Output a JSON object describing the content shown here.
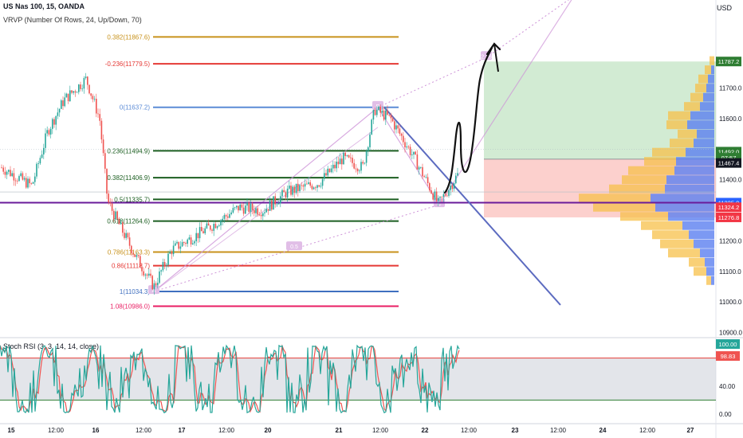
{
  "header": {
    "symbol_line": "US Nas 100, 15, OANDA",
    "indicator_line": "VRVP (Number Of Rows, 24, Up/Down, 70)",
    "currency": "USD"
  },
  "stoch": {
    "label": "Stoch RSI (3, 3, 14, 14, close)",
    "levels": [
      80,
      20
    ],
    "axis_ticks": [
      "40.00",
      "0.00"
    ],
    "value_badges": [
      {
        "text": "100.00",
        "value": 100,
        "color": "#26a69a"
      },
      {
        "text": "98.83",
        "value": 98.83,
        "color": "#ef5350"
      }
    ]
  },
  "chart_data": {
    "type": "candlestick",
    "price_axis": {
      "range": [
        10860,
        11850
      ],
      "ticks": [
        "11700.0",
        "11600.0",
        "11400.0",
        "11200.0",
        "11100.0",
        "11000.0",
        "10900.0"
      ]
    },
    "time_axis": {
      "labels": [
        "15",
        "12:00",
        "16",
        "12:00",
        "17",
        "12:00",
        "20",
        "21",
        "12:00",
        "22",
        "12:00",
        "23",
        "12:00",
        "24",
        "12:00",
        "27"
      ]
    },
    "price_badges": [
      {
        "text": "11787.2",
        "price": 11787.2,
        "color": "#2e7d32"
      },
      {
        "text": "11492.0",
        "price": 11492.0,
        "color": "#2e7d32"
      },
      {
        "text": "07:57",
        "price": 11472,
        "color": "#2e7d32"
      },
      {
        "text": "11467.4",
        "price": 11455,
        "color": "#131722"
      },
      {
        "text": "11325.0",
        "price": 11325.0,
        "color": "#2962ff"
      },
      {
        "text": "11324.2",
        "price": 11310,
        "color": "#f23645"
      },
      {
        "text": "11276.8",
        "price": 11276.8,
        "color": "#f23645"
      }
    ],
    "fib_levels": [
      {
        "label": "0.382(11867.6)",
        "price": 11867.6,
        "color": "#c8921b"
      },
      {
        "label": "-0.236(11779.5)",
        "price": 11779.5,
        "color": "#e53935"
      },
      {
        "label": "0(11637.2)",
        "price": 11637.2,
        "color": "#5b8bd6"
      },
      {
        "label": "0.236(11494.9)",
        "price": 11494.9,
        "color": "#1b5e20"
      },
      {
        "label": "0.382(11406.9)",
        "price": 11406.9,
        "color": "#1b5e20"
      },
      {
        "label": "0.5(11335.7)",
        "price": 11335.7,
        "color": "#1b5e20"
      },
      {
        "label": "0.618(11264.6)",
        "price": 11264.6,
        "color": "#1b5e20"
      },
      {
        "label": "0.786(11163.3)",
        "price": 11163.3,
        "color": "#c8921b"
      },
      {
        "label": "0.86(11118.7)",
        "price": 11118.7,
        "color": "#e53935"
      },
      {
        "label": "1(11034.3)",
        "price": 11034.3,
        "color": "#3f6fbf"
      },
      {
        "label": "1.08(10986.0)",
        "price": 10986.0,
        "color": "#e91e63"
      }
    ],
    "pattern_points": [
      {
        "label": "A",
        "price": 11034
      },
      {
        "label": "B",
        "price": 11637
      },
      {
        "label": "C",
        "price": 11318
      },
      {
        "label": "2.16",
        "price": 11800
      }
    ],
    "pattern_ratio_label": "0.5",
    "position_tool": {
      "entry": 11467.4,
      "target": 11787.2,
      "stop": 11276.8
    },
    "colors": {
      "up": "#26a69a",
      "down": "#ef5350",
      "trendline": "#5c6bc0",
      "support": "#6a1b9a"
    }
  }
}
